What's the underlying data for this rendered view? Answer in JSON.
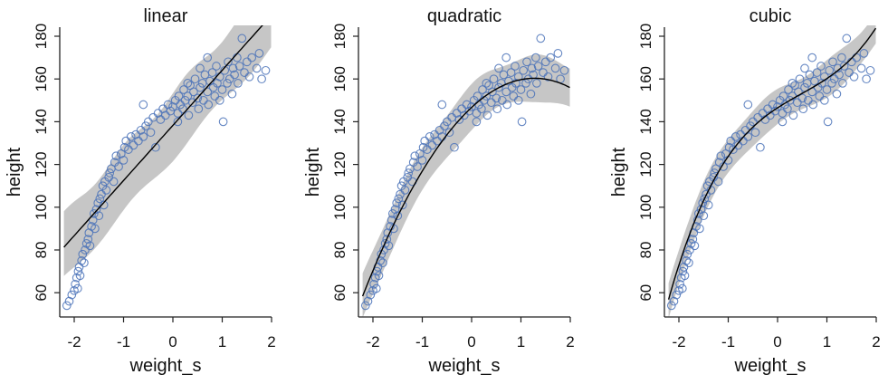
{
  "chart_data": [
    {
      "type": "scatter",
      "title": "linear",
      "xlabel": "weight_s",
      "ylabel": "height",
      "model": "linear",
      "coefficients": [
        138.3,
        25.8
      ],
      "interval_halfwidth": 15,
      "xlim": [
        -2.29,
        2.0
      ],
      "ylim": [
        48.7,
        184
      ],
      "xticks": [
        "-2",
        "-1",
        "0",
        "1",
        "2"
      ],
      "yticks": [
        "60",
        "80",
        "100",
        "120",
        "140",
        "160",
        "180"
      ]
    },
    {
      "type": "scatter",
      "title": "quadratic",
      "xlabel": "weight_s",
      "ylabel": "height",
      "model": "quadratic",
      "coefficients": [
        146.7,
        21.4,
        -8.4
      ],
      "interval_halfwidth": 10,
      "xlim": [
        -2.29,
        2.0
      ],
      "ylim": [
        48.7,
        184
      ],
      "xticks": [
        "-2",
        "-1",
        "0",
        "1",
        "2"
      ],
      "yticks": [
        "60",
        "80",
        "100",
        "120",
        "140",
        "160",
        "180"
      ]
    },
    {
      "type": "scatter",
      "title": "cubic",
      "xlabel": "weight_s",
      "ylabel": "height",
      "model": "cubic",
      "coefficients": [
        146.5,
        15.0,
        -4.5,
        3.2
      ],
      "interval_halfwidth": 8,
      "xlim": [
        -2.29,
        2.0
      ],
      "ylim": [
        48.7,
        184
      ],
      "xticks": [
        "-2",
        "-1",
        "0",
        "1",
        "2"
      ],
      "yticks": [
        "60",
        "80",
        "100",
        "120",
        "140",
        "160",
        "180"
      ]
    }
  ],
  "points": [
    [
      -2.15,
      54
    ],
    [
      -2.1,
      56
    ],
    [
      -2.05,
      59
    ],
    [
      -2.0,
      61
    ],
    [
      -1.98,
      64
    ],
    [
      -1.95,
      67
    ],
    [
      -1.92,
      70
    ],
    [
      -1.9,
      72
    ],
    [
      -1.88,
      68
    ],
    [
      -1.93,
      62
    ],
    [
      -1.85,
      75
    ],
    [
      -1.83,
      78
    ],
    [
      -1.8,
      74
    ],
    [
      -1.78,
      80
    ],
    [
      -1.75,
      83
    ],
    [
      -1.72,
      85
    ],
    [
      -1.7,
      88
    ],
    [
      -1.68,
      82
    ],
    [
      -1.65,
      91
    ],
    [
      -1.62,
      94
    ],
    [
      -1.6,
      97
    ],
    [
      -1.58,
      90
    ],
    [
      -1.55,
      99
    ],
    [
      -1.52,
      102
    ],
    [
      -1.5,
      96
    ],
    [
      -1.48,
      104
    ],
    [
      -1.45,
      106
    ],
    [
      -1.42,
      110
    ],
    [
      -1.4,
      101
    ],
    [
      -1.38,
      112
    ],
    [
      -1.35,
      108
    ],
    [
      -1.3,
      114
    ],
    [
      -1.28,
      116
    ],
    [
      -1.25,
      118
    ],
    [
      -1.2,
      112
    ],
    [
      -1.18,
      121
    ],
    [
      -1.15,
      124
    ],
    [
      -1.1,
      119
    ],
    [
      -1.05,
      125
    ],
    [
      -1.0,
      122
    ],
    [
      -0.98,
      128
    ],
    [
      -0.95,
      131
    ],
    [
      -0.9,
      127
    ],
    [
      -0.85,
      133
    ],
    [
      -0.8,
      129
    ],
    [
      -0.75,
      134
    ],
    [
      -0.7,
      131
    ],
    [
      -0.65,
      136
    ],
    [
      -0.6,
      133
    ],
    [
      -0.55,
      138
    ],
    [
      -0.5,
      140
    ],
    [
      -0.45,
      135
    ],
    [
      -0.4,
      142
    ],
    [
      -0.35,
      128
    ],
    [
      -0.3,
      144
    ],
    [
      -0.25,
      141
    ],
    [
      -0.2,
      146
    ],
    [
      -0.15,
      143
    ],
    [
      -0.1,
      148
    ],
    [
      -0.05,
      145
    ],
    [
      0.0,
      147
    ],
    [
      0.05,
      150
    ],
    [
      0.1,
      144
    ],
    [
      0.12,
      152
    ],
    [
      0.15,
      148
    ],
    [
      0.2,
      146
    ],
    [
      0.22,
      155
    ],
    [
      0.25,
      150
    ],
    [
      0.3,
      152
    ],
    [
      0.32,
      143
    ],
    [
      0.35,
      157
    ],
    [
      0.4,
      149
    ],
    [
      0.42,
      154
    ],
    [
      0.45,
      160
    ],
    [
      0.5,
      151
    ],
    [
      0.52,
      146
    ],
    [
      0.55,
      156
    ],
    [
      0.6,
      158
    ],
    [
      0.62,
      150
    ],
    [
      0.65,
      162
    ],
    [
      0.7,
      154
    ],
    [
      0.72,
      148
    ],
    [
      0.75,
      159
    ],
    [
      0.8,
      163
    ],
    [
      0.82,
      156
    ],
    [
      0.85,
      152
    ],
    [
      0.88,
      166
    ],
    [
      0.9,
      158
    ],
    [
      0.95,
      161
    ],
    [
      1.0,
      155
    ],
    [
      1.02,
      140
    ],
    [
      1.05,
      164
    ],
    [
      1.1,
      158
    ],
    [
      1.12,
      168
    ],
    [
      1.15,
      160
    ],
    [
      1.2,
      153
    ],
    [
      1.22,
      165
    ],
    [
      1.25,
      162
    ],
    [
      1.3,
      170
    ],
    [
      1.32,
      158
    ],
    [
      1.35,
      166
    ],
    [
      1.4,
      179
    ],
    [
      1.45,
      163
    ],
    [
      1.5,
      168
    ],
    [
      1.55,
      161
    ],
    [
      1.6,
      170
    ],
    [
      1.7,
      165
    ],
    [
      1.75,
      172
    ],
    [
      1.8,
      160
    ],
    [
      1.88,
      164
    ],
    [
      0.3,
      158
    ],
    [
      0.1,
      140
    ],
    [
      -0.6,
      148
    ],
    [
      0.55,
      165
    ],
    [
      0.7,
      170
    ],
    [
      0.95,
      150
    ]
  ],
  "colors": {
    "points": "#4a72b8",
    "band": "#c6c6c6",
    "line": "#000000",
    "axis": "#222222"
  }
}
